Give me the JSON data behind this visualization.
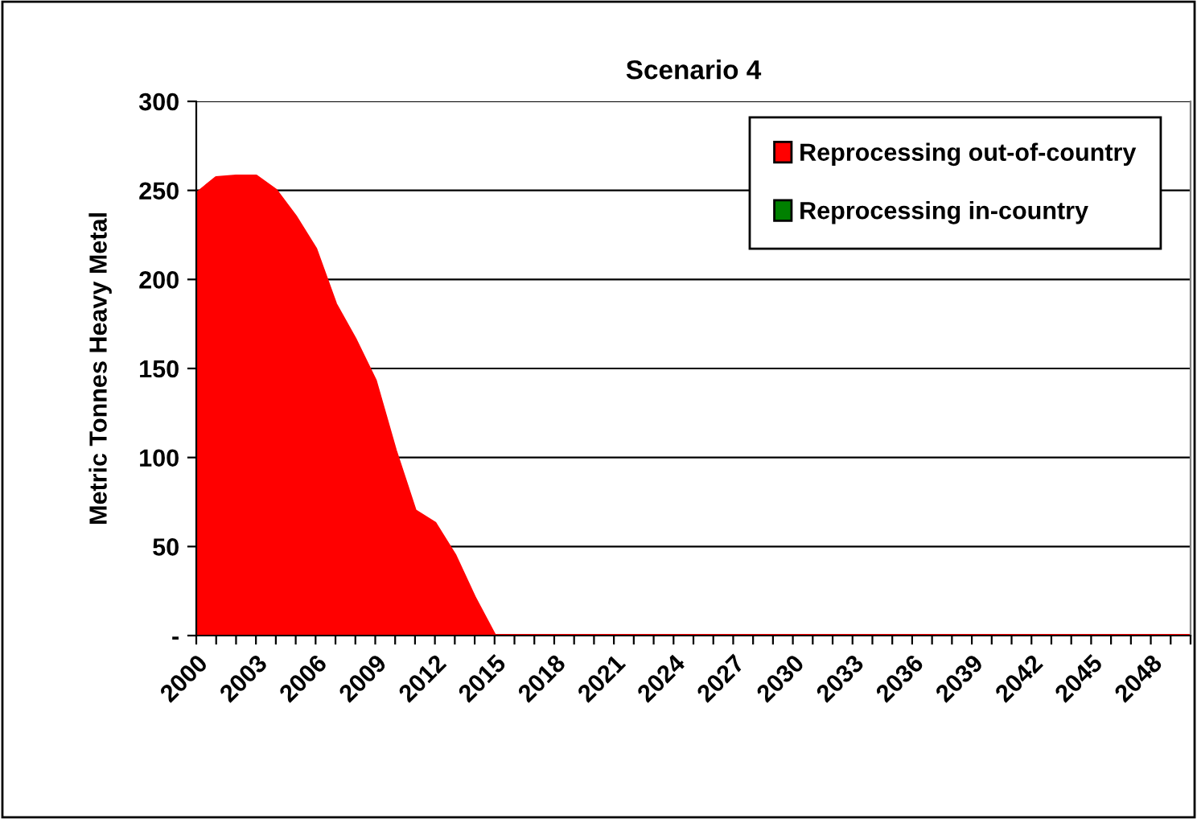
{
  "chart_data": {
    "type": "area",
    "title": "Scenario 4",
    "ylabel": "Metric Tonnes Heavy Metal",
    "categories": [
      "2000",
      null,
      null,
      "2003",
      null,
      null,
      "2006",
      null,
      null,
      "2009",
      null,
      null,
      "2012",
      null,
      null,
      "2015",
      null,
      null,
      "2018",
      null,
      null,
      "2021",
      null,
      null,
      "2024",
      null,
      null,
      "2027",
      null,
      null,
      "2030",
      null,
      null,
      "2033",
      null,
      null,
      "2036",
      null,
      null,
      "2039",
      null,
      null,
      "2042",
      null,
      null,
      "2045",
      null,
      null,
      "2048",
      null,
      null
    ],
    "series": [
      {
        "name": "Reprocessing out-of-country",
        "color": "#ff0000",
        "values": [
          248,
          257,
          258,
          258,
          250,
          235,
          217,
          186,
          166,
          143,
          104,
          70,
          63,
          45,
          21,
          0,
          0,
          0,
          0,
          0,
          0,
          0,
          0,
          0,
          0,
          0,
          0,
          0,
          0,
          0,
          0,
          0,
          0,
          0,
          0,
          0,
          0,
          0,
          0,
          0,
          0,
          0,
          0,
          0,
          0,
          0,
          0,
          0,
          0,
          0,
          0
        ]
      },
      {
        "name": "Reprocessing in-country",
        "color": "#008000",
        "values": [
          null,
          null,
          null,
          null,
          null,
          null,
          null,
          null,
          null,
          null,
          null,
          null,
          null,
          null,
          null,
          null,
          null,
          null,
          null,
          null,
          null,
          null,
          null,
          null,
          null,
          null,
          null,
          null,
          null,
          null,
          null,
          null,
          null,
          null,
          null,
          null,
          null,
          null,
          null,
          null,
          null,
          null,
          null,
          null,
          null,
          null,
          null,
          null,
          null,
          null,
          null
        ]
      }
    ],
    "ylim": [
      0,
      300
    ],
    "yticks": [
      {
        "value": 0,
        "label": "-"
      },
      50,
      100,
      150,
      200,
      250,
      300
    ],
    "grid": "y",
    "legend": "top right"
  }
}
